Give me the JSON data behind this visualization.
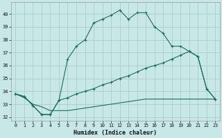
{
  "xlabel": "Humidex (Indice chaleur)",
  "bg_color": "#c8e8e8",
  "grid_color": "#aacccc",
  "line_color": "#1a6b5a",
  "xlim": [
    -0.5,
    23.5
  ],
  "ylim": [
    31.7,
    40.9
  ],
  "yticks": [
    32,
    33,
    34,
    35,
    36,
    37,
    38,
    39,
    40
  ],
  "xticks": [
    0,
    1,
    2,
    3,
    4,
    5,
    6,
    7,
    8,
    9,
    10,
    11,
    12,
    13,
    14,
    15,
    16,
    17,
    18,
    19,
    20,
    21,
    22,
    23
  ],
  "series1_x": [
    0,
    1,
    2,
    3,
    4,
    5,
    6,
    7,
    8,
    9,
    10,
    11,
    12,
    13,
    14,
    15,
    16,
    17,
    18,
    19,
    20,
    21,
    22,
    23
  ],
  "series1_y": [
    33.8,
    33.6,
    32.9,
    32.2,
    32.2,
    33.3,
    36.5,
    37.5,
    38.0,
    39.3,
    39.6,
    39.9,
    40.3,
    39.6,
    40.1,
    40.1,
    39.0,
    38.5,
    37.5,
    37.5,
    37.1,
    36.7,
    34.2,
    33.4
  ],
  "series2_x": [
    0,
    1,
    2,
    3,
    4,
    5,
    6,
    7,
    8,
    9,
    10,
    11,
    12,
    13,
    14,
    15,
    16,
    17,
    18,
    19,
    20,
    21,
    22,
    23
  ],
  "series2_y": [
    33.8,
    33.6,
    32.9,
    32.2,
    32.2,
    33.3,
    33.5,
    33.8,
    34.0,
    34.2,
    34.5,
    34.7,
    35.0,
    35.2,
    35.5,
    35.8,
    36.0,
    36.2,
    36.5,
    36.8,
    37.1,
    36.7,
    34.2,
    33.4
  ],
  "series3_x": [
    0,
    1,
    2,
    3,
    4,
    5,
    6,
    7,
    8,
    9,
    10,
    11,
    12,
    13,
    14,
    15,
    16,
    17,
    18,
    19,
    20,
    21,
    22,
    23
  ],
  "series3_y": [
    33.8,
    33.5,
    33.0,
    32.8,
    32.5,
    32.5,
    32.5,
    32.6,
    32.7,
    32.8,
    32.9,
    33.0,
    33.1,
    33.2,
    33.3,
    33.4,
    33.4,
    33.4,
    33.4,
    33.4,
    33.4,
    33.4,
    33.4,
    33.4
  ]
}
